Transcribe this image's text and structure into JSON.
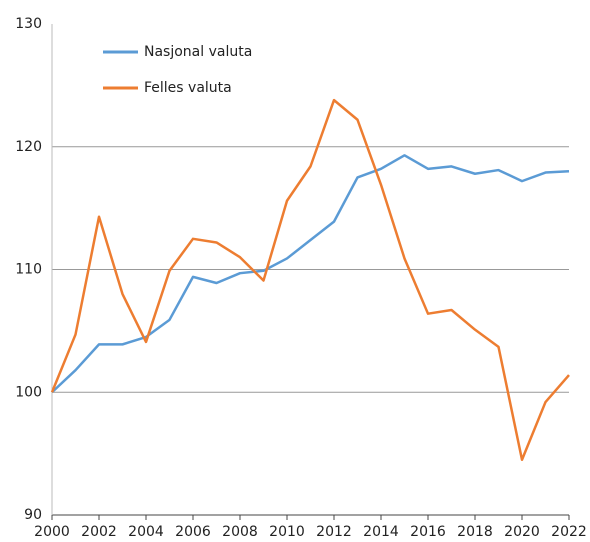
{
  "chart_data": {
    "type": "line",
    "x": [
      2000,
      2001,
      2002,
      2003,
      2004,
      2005,
      2006,
      2007,
      2008,
      2009,
      2010,
      2011,
      2012,
      2013,
      2014,
      2015,
      2016,
      2017,
      2018,
      2019,
      2020,
      2021,
      2022
    ],
    "series": [
      {
        "name": "Nasjonal valuta",
        "color": "#5b9bd5",
        "values": [
          100,
          101.8,
          103.9,
          103.9,
          104.5,
          105.9,
          109.4,
          108.9,
          109.7,
          109.9,
          110.9,
          112.4,
          113.9,
          117.5,
          118.2,
          119.3,
          118.2,
          118.4,
          117.8,
          118.1,
          117.2,
          117.9,
          118.0
        ]
      },
      {
        "name": "Felles valuta",
        "color": "#ed7d31",
        "values": [
          100,
          104.7,
          114.3,
          108,
          104.1,
          109.9,
          112.5,
          112.2,
          111,
          109.1,
          115.6,
          118.4,
          123.8,
          122.2,
          116.9,
          110.9,
          106.4,
          106.7,
          105.1,
          103.7,
          94.5,
          99.2,
          101.4
        ]
      }
    ],
    "xlim": [
      2000,
      2022
    ],
    "xticks": [
      2000,
      2002,
      2004,
      2006,
      2008,
      2010,
      2012,
      2014,
      2016,
      2018,
      2020,
      2022
    ],
    "ylim": [
      90,
      130
    ],
    "yticks": [
      90,
      100,
      110,
      120,
      130
    ],
    "grid": true,
    "legend": "top-left"
  }
}
